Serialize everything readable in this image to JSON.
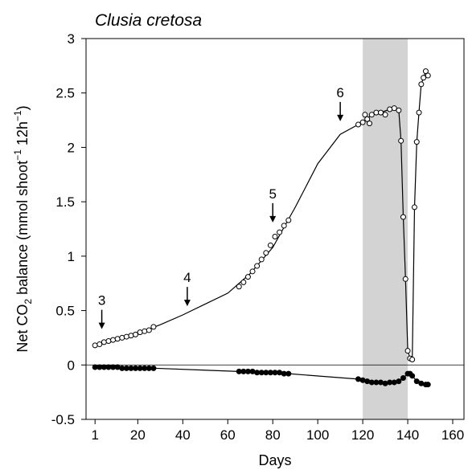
{
  "chart_data": {
    "type": "line",
    "title": "Clusia cretosa",
    "xlabel": "Days",
    "ylabel_parts": [
      "Net CO",
      "2",
      " balance (mmol shoot",
      "−1",
      " 12h",
      "−1",
      ")"
    ],
    "xlim": [
      -3,
      165
    ],
    "ylim": [
      -0.5,
      3
    ],
    "xticks": [
      1,
      20,
      40,
      60,
      80,
      100,
      120,
      140,
      160
    ],
    "yticks": [
      -0.5,
      0,
      0.5,
      1,
      1.5,
      2,
      2.5,
      3
    ],
    "shade": [
      120,
      140
    ],
    "shade_color": "#d3d3d3",
    "zero_line": 0,
    "series": [
      {
        "style": "line",
        "color": "#000000",
        "x": [
          1,
          10,
          20,
          30,
          40,
          50,
          60,
          70,
          80,
          90,
          100,
          110,
          118,
          120,
          124,
          128,
          132,
          134,
          136,
          137,
          138,
          139,
          140,
          141,
          142,
          143,
          144,
          145,
          146,
          147,
          148,
          149
        ],
        "values": [
          0.18,
          0.23,
          0.29,
          0.37,
          0.46,
          0.56,
          0.66,
          0.84,
          1.08,
          1.45,
          1.85,
          2.12,
          2.21,
          2.23,
          2.3,
          2.32,
          2.35,
          2.36,
          2.34,
          2.06,
          1.36,
          0.79,
          0.13,
          0.06,
          0.05,
          1.45,
          2.05,
          2.32,
          2.58,
          2.64,
          2.7,
          2.66
        ]
      },
      {
        "style": "open",
        "color": "#000000",
        "x": [
          1,
          3,
          5,
          7,
          9,
          11,
          13,
          15,
          17,
          19,
          21,
          23,
          25,
          27,
          65,
          67,
          69,
          71,
          73,
          75,
          77,
          79,
          81,
          83,
          85,
          87,
          118,
          120,
          121,
          122,
          123,
          124,
          126,
          128,
          130,
          132,
          134,
          136,
          137,
          138,
          139,
          140,
          141,
          142,
          143,
          144,
          145,
          146,
          147,
          148,
          149
        ],
        "values": [
          0.18,
          0.19,
          0.21,
          0.22,
          0.23,
          0.24,
          0.25,
          0.26,
          0.27,
          0.28,
          0.3,
          0.31,
          0.32,
          0.35,
          0.72,
          0.76,
          0.81,
          0.86,
          0.91,
          0.97,
          1.03,
          1.1,
          1.18,
          1.22,
          1.28,
          1.33,
          2.21,
          2.23,
          2.3,
          2.26,
          2.22,
          2.3,
          2.32,
          2.32,
          2.3,
          2.35,
          2.36,
          2.34,
          2.06,
          1.36,
          0.79,
          0.13,
          0.06,
          0.05,
          1.45,
          2.05,
          2.32,
          2.58,
          2.64,
          2.7,
          2.66
        ]
      },
      {
        "style": "filled",
        "color": "#000000",
        "x": [
          1,
          3,
          5,
          7,
          9,
          11,
          13,
          15,
          17,
          19,
          21,
          23,
          25,
          27,
          65,
          67,
          69,
          71,
          73,
          75,
          77,
          79,
          81,
          83,
          85,
          87,
          118,
          120,
          122,
          124,
          126,
          128,
          130,
          132,
          134,
          136,
          138,
          140,
          141,
          142,
          144,
          146,
          148,
          149
        ],
        "values": [
          -0.02,
          -0.02,
          -0.02,
          -0.02,
          -0.02,
          -0.02,
          -0.03,
          -0.03,
          -0.03,
          -0.03,
          -0.03,
          -0.03,
          -0.03,
          -0.03,
          -0.06,
          -0.06,
          -0.06,
          -0.06,
          -0.07,
          -0.07,
          -0.07,
          -0.07,
          -0.07,
          -0.07,
          -0.08,
          -0.08,
          -0.13,
          -0.14,
          -0.15,
          -0.16,
          -0.16,
          -0.16,
          -0.17,
          -0.16,
          -0.16,
          -0.15,
          -0.12,
          -0.08,
          -0.08,
          -0.1,
          -0.15,
          -0.17,
          -0.18,
          -0.18
        ]
      }
    ],
    "annotations": [
      {
        "text": "3",
        "x": 4,
        "y": 0.33
      },
      {
        "text": "4",
        "x": 42,
        "y": 0.54
      },
      {
        "text": "5",
        "x": 80,
        "y": 1.31
      },
      {
        "text": "6",
        "x": 110,
        "y": 2.24
      }
    ]
  }
}
